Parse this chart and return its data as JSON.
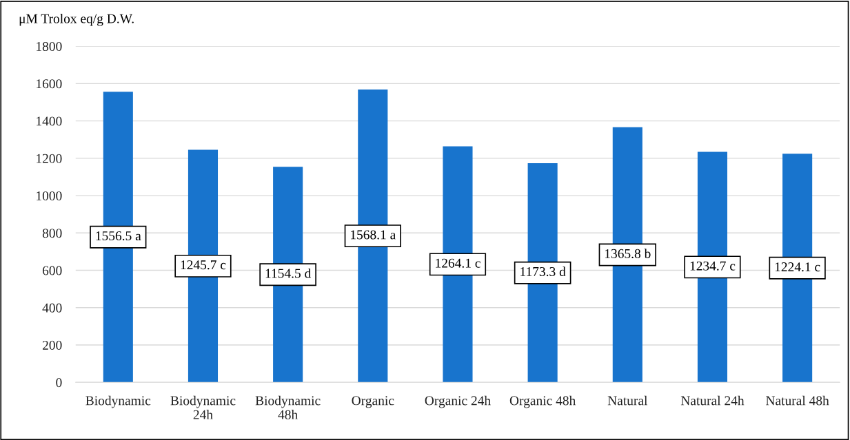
{
  "chart_data": {
    "type": "bar",
    "ylabel": "μM Trolox eq/g D.W.",
    "categories": [
      "Biodynamic",
      "Biodynamic 24h",
      "Biodynamic 48h",
      "Organic",
      "Organic 24h",
      "Organic 48h",
      "Natural",
      "Natural 24h",
      "Natural 48h"
    ],
    "values": [
      1556.5,
      1245.7,
      1154.5,
      1568.1,
      1264.1,
      1173.3,
      1365.8,
      1234.7,
      1224.1
    ],
    "value_labels": [
      "1556.5 a",
      "1245.7 c",
      "1154.5 d",
      "1568.1 a",
      "1264.1 c",
      "1173.3 d",
      "1365.8 b",
      "1234.7 c",
      "1224.1 c"
    ],
    "color": "#1874cd",
    "ylim": [
      0,
      1800
    ],
    "yticks": [
      0,
      200,
      400,
      600,
      800,
      1000,
      1200,
      1400,
      1600,
      1800
    ],
    "grid": "y"
  }
}
